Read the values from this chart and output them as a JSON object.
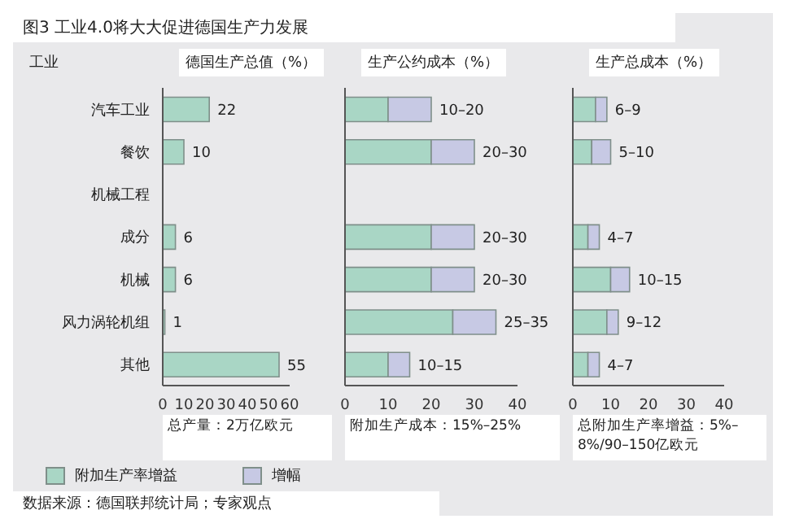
{
  "chart_data": [
    {
      "type": "bar",
      "orientation": "horizontal",
      "title": "图3 工业4.0将大大促进德国生产力发展",
      "subtitle": "德国生产总值（%）",
      "ylabel": "工业",
      "xlabel": "总产量：2万亿欧元",
      "categories": [
        "汽车工业",
        "餐饮",
        "机械工程",
        "成分",
        "机械",
        "风力涡轮机组",
        "其他"
      ],
      "values": [
        22,
        10,
        null,
        6,
        6,
        1,
        55
      ],
      "color": "#a9d6c5",
      "data_labels": true,
      "xlim": [
        0,
        60
      ],
      "xticks": [
        0,
        10,
        20,
        30,
        40,
        50,
        60
      ],
      "grid": false,
      "annotations": [
        "数据来源：德国联邦统计局；专家观点"
      ]
    },
    {
      "type": "bar",
      "orientation": "horizontal",
      "stacked": true,
      "subtitle": "生产公约成本（%）",
      "xlabel": "附加生产成本：15%–25%",
      "tick_labels": "x",
      "categories": [
        null,
        null,
        null,
        null,
        null,
        null,
        null
      ],
      "series": [
        {
          "name": "附加生产率增益",
          "color": "#a9d6c5",
          "values": [
            10,
            20,
            null,
            20,
            20,
            25,
            10
          ]
        },
        {
          "name": "增幅",
          "color": "#c7c9e4",
          "values": [
            10,
            10,
            null,
            10,
            10,
            10,
            5
          ],
          "value_labels": [
            "10–20",
            "20–30",
            null,
            "20–30",
            "20–30",
            "25–35",
            "10–15"
          ]
        }
      ],
      "legend": "bottom",
      "xlim": [
        0,
        40
      ],
      "xticks": [
        0,
        10,
        20,
        30,
        40
      ],
      "grid": false
    },
    {
      "type": "bar",
      "orientation": "horizontal",
      "stacked": true,
      "subtitle": "生产总成本（%）",
      "xlabel": "总附加生产率增益：5%–8%/90–150亿欧元",
      "tick_labels": "x",
      "categories": [
        null,
        null,
        null,
        null,
        null,
        null,
        null
      ],
      "series": [
        {
          "color": "#a9d6c5",
          "values": [
            6,
            5,
            null,
            4,
            10,
            9,
            4
          ]
        },
        {
          "color": "#c7c9e4",
          "values": [
            3,
            5,
            null,
            3,
            5,
            3,
            3
          ],
          "value_labels": [
            "6–9",
            "5–10",
            null,
            "4–7",
            "10–15",
            "9–12",
            "4–7"
          ]
        }
      ],
      "xlim": [
        0,
        40
      ],
      "xticks": [
        0,
        10,
        20,
        30,
        40
      ],
      "grid": false
    }
  ]
}
